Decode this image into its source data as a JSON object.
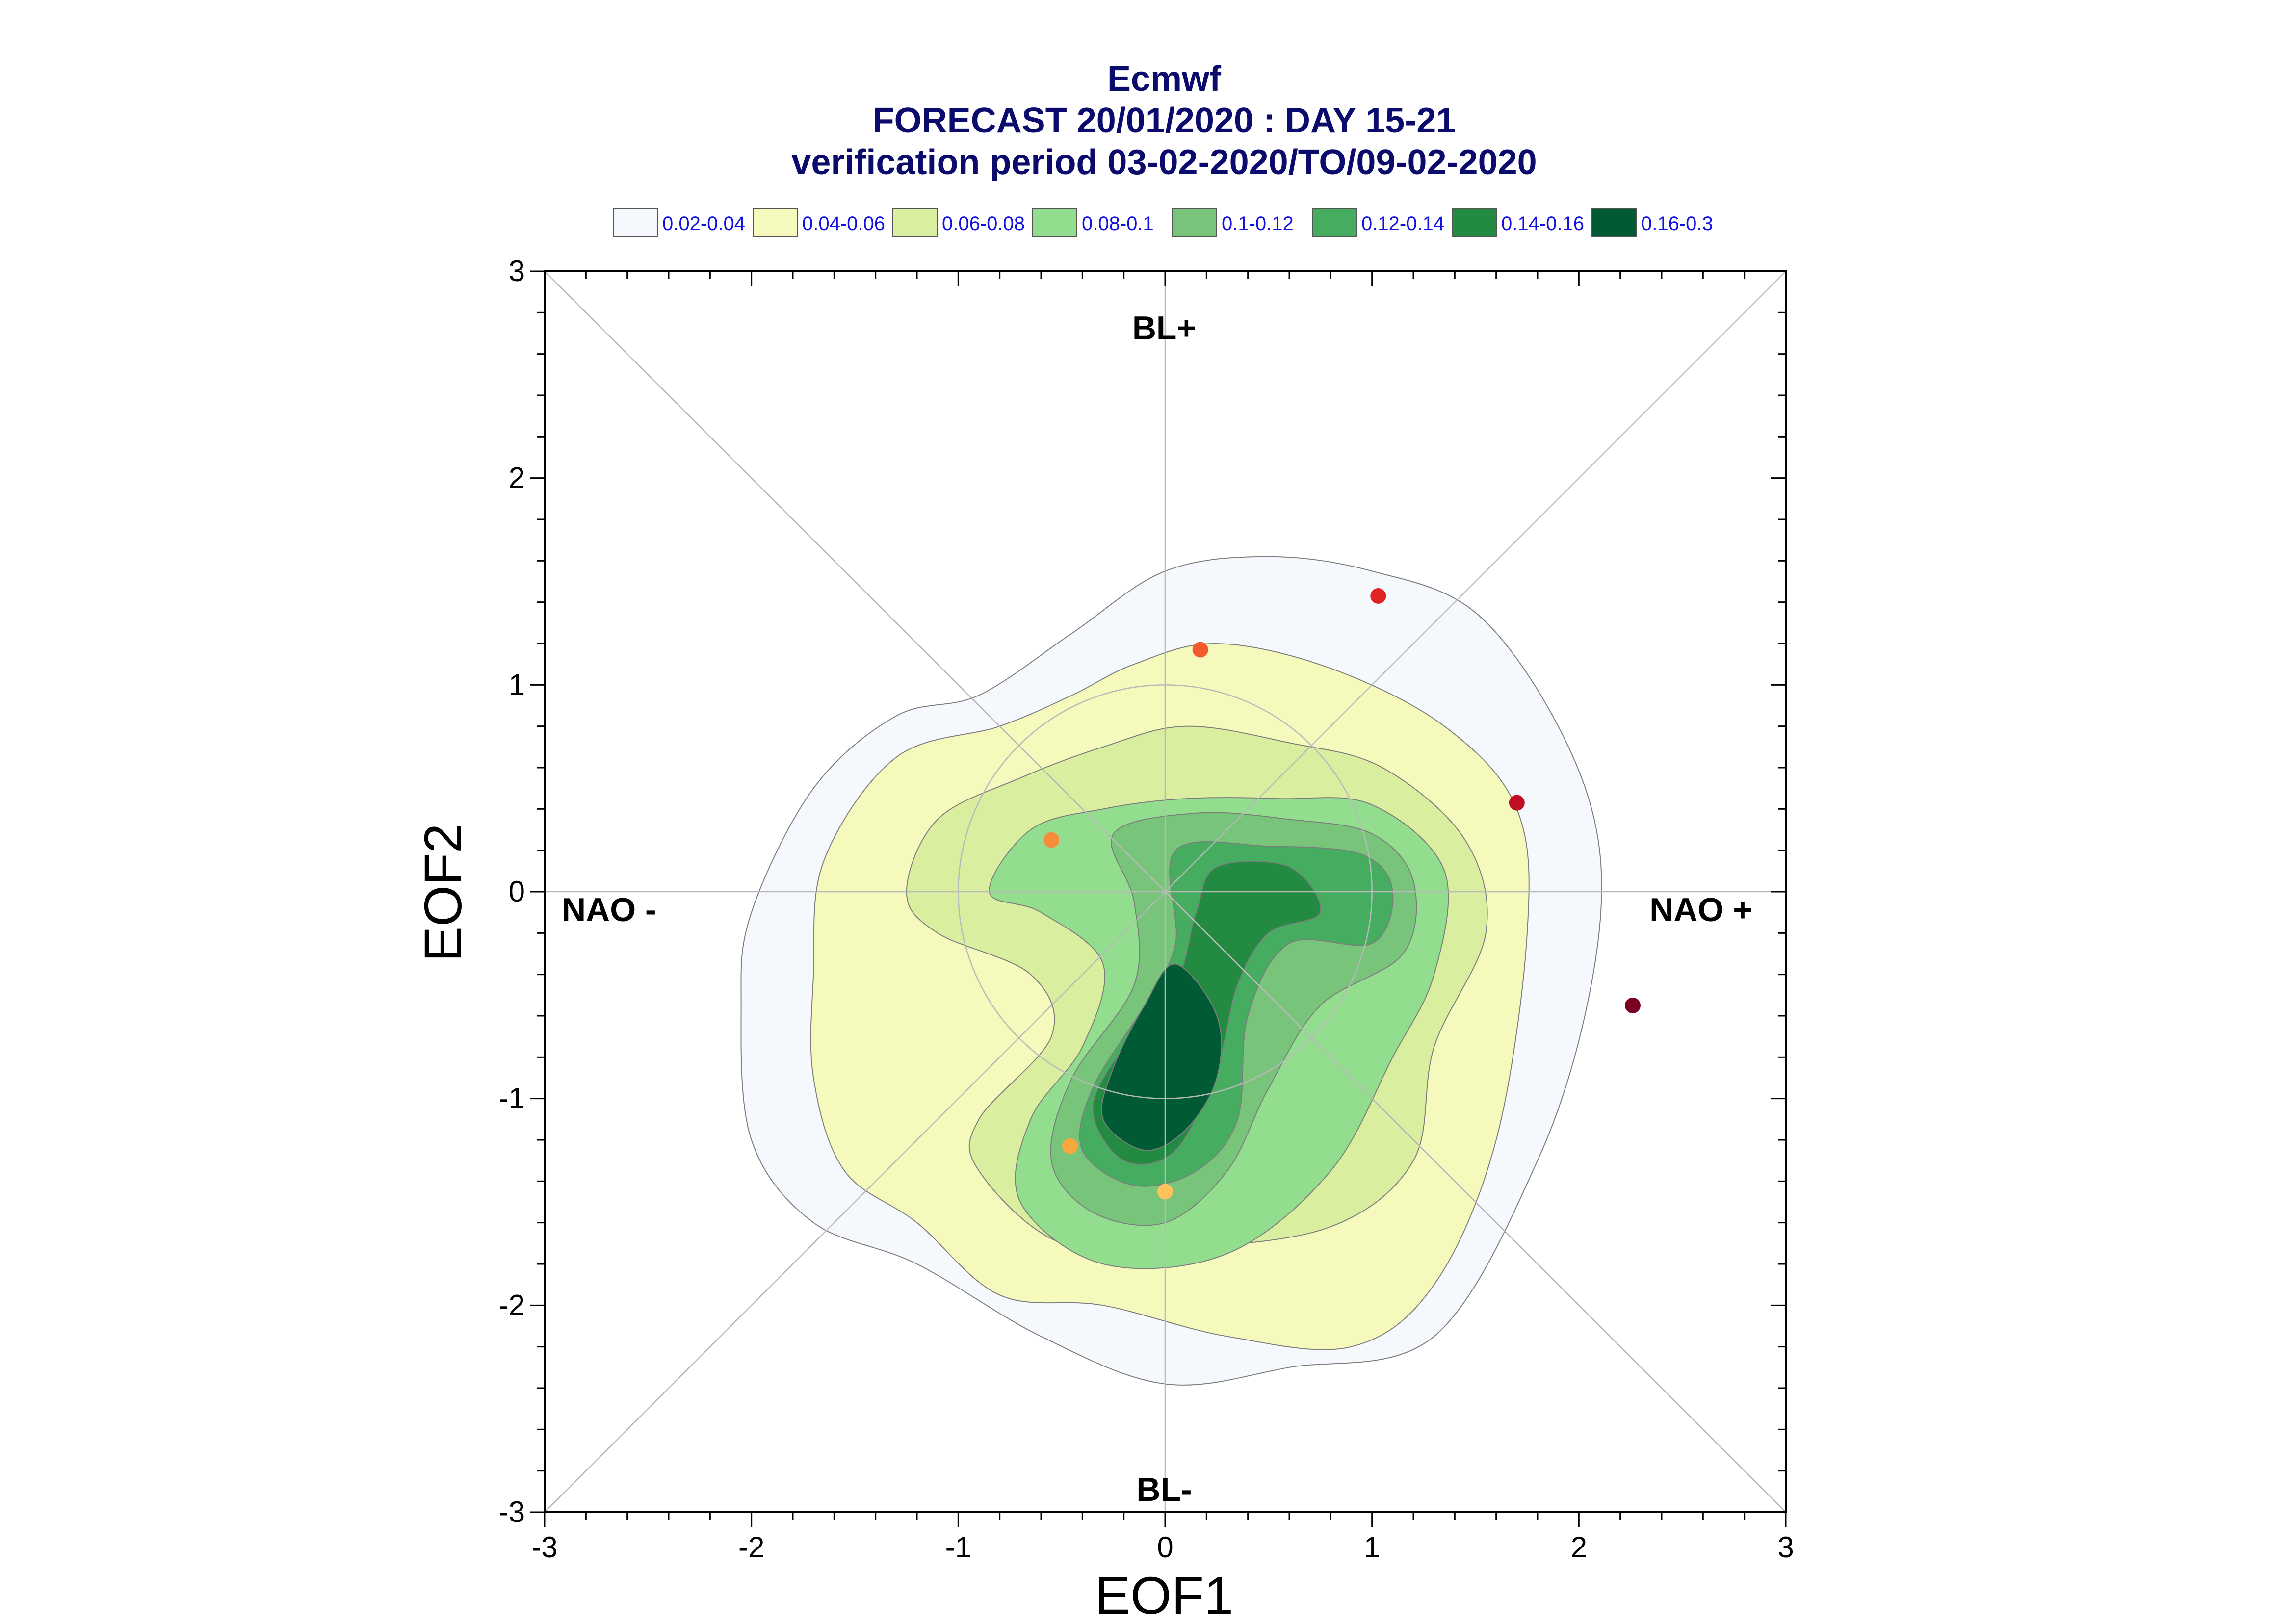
{
  "chart_data": {
    "type": "contour",
    "title": [
      "Ecmwf",
      "FORECAST 20/01/2020 : DAY 15-21",
      "verification period 03-02-2020/TO/09-02-2020"
    ],
    "xlabel": "EOF1",
    "ylabel": "EOF2",
    "xlim": [
      -3,
      3
    ],
    "ylim": [
      -3,
      3
    ],
    "xticks": [
      "-3",
      "-2",
      "-1",
      "0",
      "1",
      "2",
      "3"
    ],
    "yticks": [
      "-3",
      "-2",
      "-1",
      "0",
      "1",
      "2",
      "3"
    ],
    "legend": [
      {
        "label": "0.02-0.04",
        "color": "#f5f9fd"
      },
      {
        "label": "0.04-0.06",
        "color": "#f6f9bc"
      },
      {
        "label": "0.06-0.08",
        "color": "#d9ee9f"
      },
      {
        "label": "0.08-0.1",
        "color": "#93de8e"
      },
      {
        "label": "0.1-0.12",
        "color": "#77c47a"
      },
      {
        "label": "0.12-0.14",
        "color": "#46ad60"
      },
      {
        "label": "0.14-0.16",
        "color": "#238a42"
      },
      {
        "label": "0.16-0.3",
        "color": "#005a34"
      }
    ],
    "region_labels": {
      "top": "BL+",
      "bottom": "BL-",
      "left": "NAO -",
      "right": "NAO +"
    },
    "reference_circle_radius": 1,
    "points": [
      {
        "x": 1.03,
        "y": 1.43,
        "color": "#e02424"
      },
      {
        "x": 0.17,
        "y": 1.17,
        "color": "#f25a2c"
      },
      {
        "x": 1.7,
        "y": 0.43,
        "color": "#c00f25"
      },
      {
        "x": -0.55,
        "y": 0.25,
        "color": "#f78c3a"
      },
      {
        "x": 2.26,
        "y": -0.55,
        "color": "#7a0022"
      },
      {
        "x": -0.46,
        "y": -1.23,
        "color": "#f9a83e"
      },
      {
        "x": 0.0,
        "y": -1.45,
        "color": "#fcc35c"
      }
    ],
    "contours": [
      {
        "level": "0.02-0.04",
        "points": [
          [
            -2.05,
            -0.55
          ],
          [
            -2.0,
            -0.1
          ],
          [
            -1.7,
            0.5
          ],
          [
            -1.3,
            0.85
          ],
          [
            -0.9,
            0.95
          ],
          [
            -0.45,
            1.25
          ],
          [
            0.0,
            1.55
          ],
          [
            0.5,
            1.62
          ],
          [
            1.0,
            1.55
          ],
          [
            1.5,
            1.35
          ],
          [
            1.9,
            0.8
          ],
          [
            2.1,
            0.2
          ],
          [
            2.05,
            -0.5
          ],
          [
            1.8,
            -1.3
          ],
          [
            1.3,
            -2.15
          ],
          [
            0.6,
            -2.3
          ],
          [
            0.0,
            -2.38
          ],
          [
            -0.6,
            -2.15
          ],
          [
            -1.2,
            -1.8
          ],
          [
            -1.7,
            -1.6
          ],
          [
            -2.0,
            -1.2
          ]
        ]
      },
      {
        "level": "0.04-0.06",
        "points": [
          [
            -1.7,
            -0.4
          ],
          [
            -1.65,
            0.15
          ],
          [
            -1.3,
            0.65
          ],
          [
            -0.8,
            0.8
          ],
          [
            -0.45,
            0.95
          ],
          [
            -0.15,
            1.1
          ],
          [
            0.25,
            1.2
          ],
          [
            0.8,
            1.08
          ],
          [
            1.35,
            0.8
          ],
          [
            1.7,
            0.4
          ],
          [
            1.75,
            -0.2
          ],
          [
            1.6,
            -1.2
          ],
          [
            1.3,
            -1.9
          ],
          [
            0.9,
            -2.2
          ],
          [
            0.3,
            -2.15
          ],
          [
            -0.3,
            -2.0
          ],
          [
            -0.8,
            -1.95
          ],
          [
            -1.2,
            -1.6
          ],
          [
            -1.55,
            -1.35
          ],
          [
            -1.7,
            -0.9
          ]
        ]
      },
      {
        "level": "0.06-0.08",
        "points": [
          [
            -1.25,
            0.0
          ],
          [
            -1.1,
            0.35
          ],
          [
            -0.7,
            0.55
          ],
          [
            -0.3,
            0.7
          ],
          [
            0.1,
            0.8
          ],
          [
            0.6,
            0.72
          ],
          [
            1.05,
            0.6
          ],
          [
            1.45,
            0.25
          ],
          [
            1.55,
            -0.2
          ],
          [
            1.3,
            -0.75
          ],
          [
            1.2,
            -1.3
          ],
          [
            0.8,
            -1.62
          ],
          [
            0.1,
            -1.72
          ],
          [
            -0.5,
            -1.7
          ],
          [
            -0.9,
            -1.35
          ],
          [
            -0.9,
            -1.1
          ],
          [
            -0.55,
            -0.7
          ],
          [
            -0.65,
            -0.4
          ],
          [
            -1.1,
            -0.2
          ]
        ]
      },
      {
        "level": "0.08-0.1",
        "points": [
          [
            -0.85,
            0.0
          ],
          [
            -0.65,
            0.3
          ],
          [
            -0.3,
            0.4
          ],
          [
            0.1,
            0.45
          ],
          [
            0.55,
            0.45
          ],
          [
            1.0,
            0.42
          ],
          [
            1.35,
            0.1
          ],
          [
            1.3,
            -0.4
          ],
          [
            1.1,
            -0.8
          ],
          [
            0.8,
            -1.35
          ],
          [
            0.3,
            -1.75
          ],
          [
            -0.3,
            -1.8
          ],
          [
            -0.7,
            -1.5
          ],
          [
            -0.65,
            -1.1
          ],
          [
            -0.4,
            -0.75
          ],
          [
            -0.3,
            -0.35
          ],
          [
            -0.6,
            -0.1
          ]
        ]
      },
      {
        "level": "0.1-0.12",
        "points": [
          [
            -0.25,
            0.28
          ],
          [
            0.15,
            0.38
          ],
          [
            0.6,
            0.35
          ],
          [
            1.0,
            0.28
          ],
          [
            1.2,
            0.05
          ],
          [
            1.15,
            -0.3
          ],
          [
            0.75,
            -0.55
          ],
          [
            0.5,
            -0.95
          ],
          [
            0.3,
            -1.35
          ],
          [
            0.0,
            -1.6
          ],
          [
            -0.35,
            -1.55
          ],
          [
            -0.55,
            -1.3
          ],
          [
            -0.45,
            -0.9
          ],
          [
            -0.15,
            -0.45
          ],
          [
            -0.15,
            -0.05
          ]
        ]
      },
      {
        "level": "0.12-0.14",
        "points": [
          [
            0.05,
            0.2
          ],
          [
            0.5,
            0.22
          ],
          [
            0.95,
            0.18
          ],
          [
            1.1,
            0.0
          ],
          [
            1.0,
            -0.25
          ],
          [
            0.6,
            -0.25
          ],
          [
            0.4,
            -0.6
          ],
          [
            0.35,
            -1.1
          ],
          [
            0.15,
            -1.35
          ],
          [
            -0.15,
            -1.42
          ],
          [
            -0.4,
            -1.25
          ],
          [
            -0.35,
            -0.95
          ],
          [
            -0.1,
            -0.55
          ],
          [
            0.05,
            -0.25
          ]
        ]
      },
      {
        "level": "0.14-0.16",
        "points": [
          [
            0.25,
            0.12
          ],
          [
            0.6,
            0.12
          ],
          [
            0.75,
            -0.1
          ],
          [
            0.5,
            -0.2
          ],
          [
            0.35,
            -0.45
          ],
          [
            0.25,
            -0.85
          ],
          [
            0.05,
            -1.25
          ],
          [
            -0.2,
            -1.3
          ],
          [
            -0.35,
            -1.05
          ],
          [
            -0.2,
            -0.75
          ],
          [
            0.05,
            -0.45
          ],
          [
            0.15,
            -0.1
          ]
        ]
      },
      {
        "level": "0.16-0.3",
        "points": [
          [
            0.05,
            -0.35
          ],
          [
            0.25,
            -0.6
          ],
          [
            0.25,
            -0.9
          ],
          [
            0.1,
            -1.15
          ],
          [
            -0.1,
            -1.25
          ],
          [
            -0.3,
            -1.1
          ],
          [
            -0.25,
            -0.85
          ],
          [
            -0.1,
            -0.55
          ]
        ]
      }
    ]
  }
}
